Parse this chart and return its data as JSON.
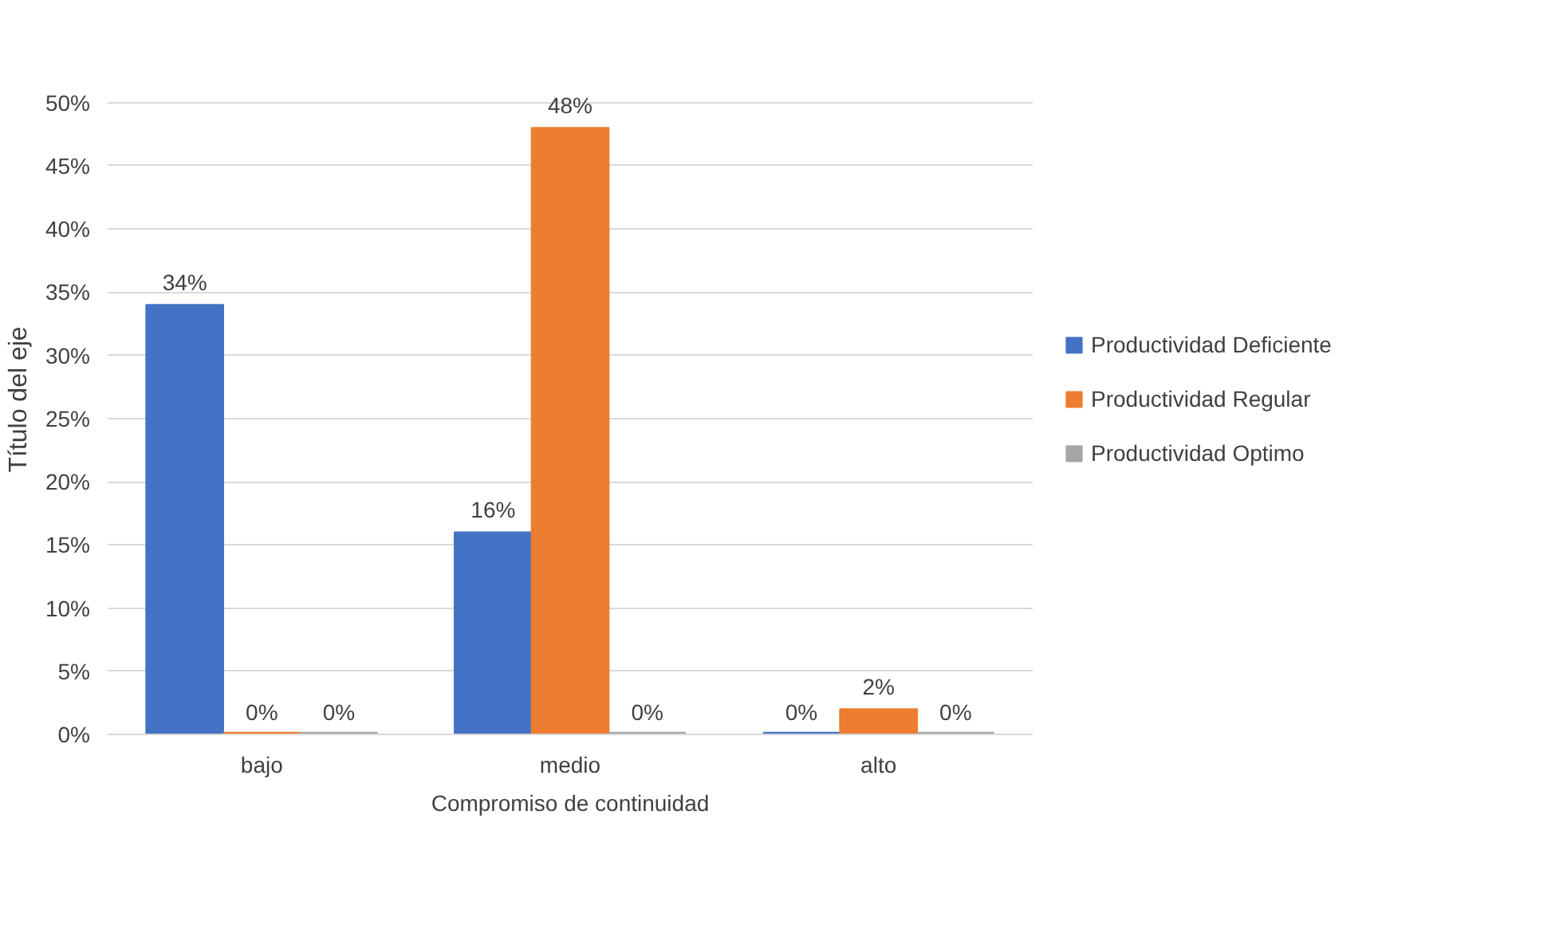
{
  "chart_data": {
    "type": "bar",
    "xlabel": "Compromiso de continuidad",
    "ylabel": "Título del eje",
    "categories": [
      "bajo",
      "medio",
      "alto"
    ],
    "series": [
      {
        "name": "Productividad Deficiente",
        "color": "#4472c4",
        "values": [
          34,
          16,
          0
        ],
        "value_labels": [
          "34%",
          "16%",
          "0%"
        ]
      },
      {
        "name": "Productividad Regular",
        "color": "#ed7d31",
        "values": [
          0,
          48,
          2
        ],
        "value_labels": [
          "0%",
          "48%",
          "2%"
        ]
      },
      {
        "name": "Productividad Optimo",
        "color": "#a5a5a5",
        "values": [
          0,
          0,
          0
        ],
        "value_labels": [
          "0%",
          "0%",
          "0%"
        ]
      }
    ],
    "ylim": [
      0,
      50
    ],
    "yticks": [
      {
        "value": 0,
        "label": "0%"
      },
      {
        "value": 5,
        "label": "5%"
      },
      {
        "value": 10,
        "label": "10%"
      },
      {
        "value": 15,
        "label": "15%"
      },
      {
        "value": 20,
        "label": "20%"
      },
      {
        "value": 25,
        "label": "25%"
      },
      {
        "value": 30,
        "label": "30%"
      },
      {
        "value": 35,
        "label": "35%"
      },
      {
        "value": 40,
        "label": "40%"
      },
      {
        "value": 45,
        "label": "45%"
      },
      {
        "value": 50,
        "label": "50%"
      }
    ],
    "grid": "y",
    "legend": "right"
  }
}
